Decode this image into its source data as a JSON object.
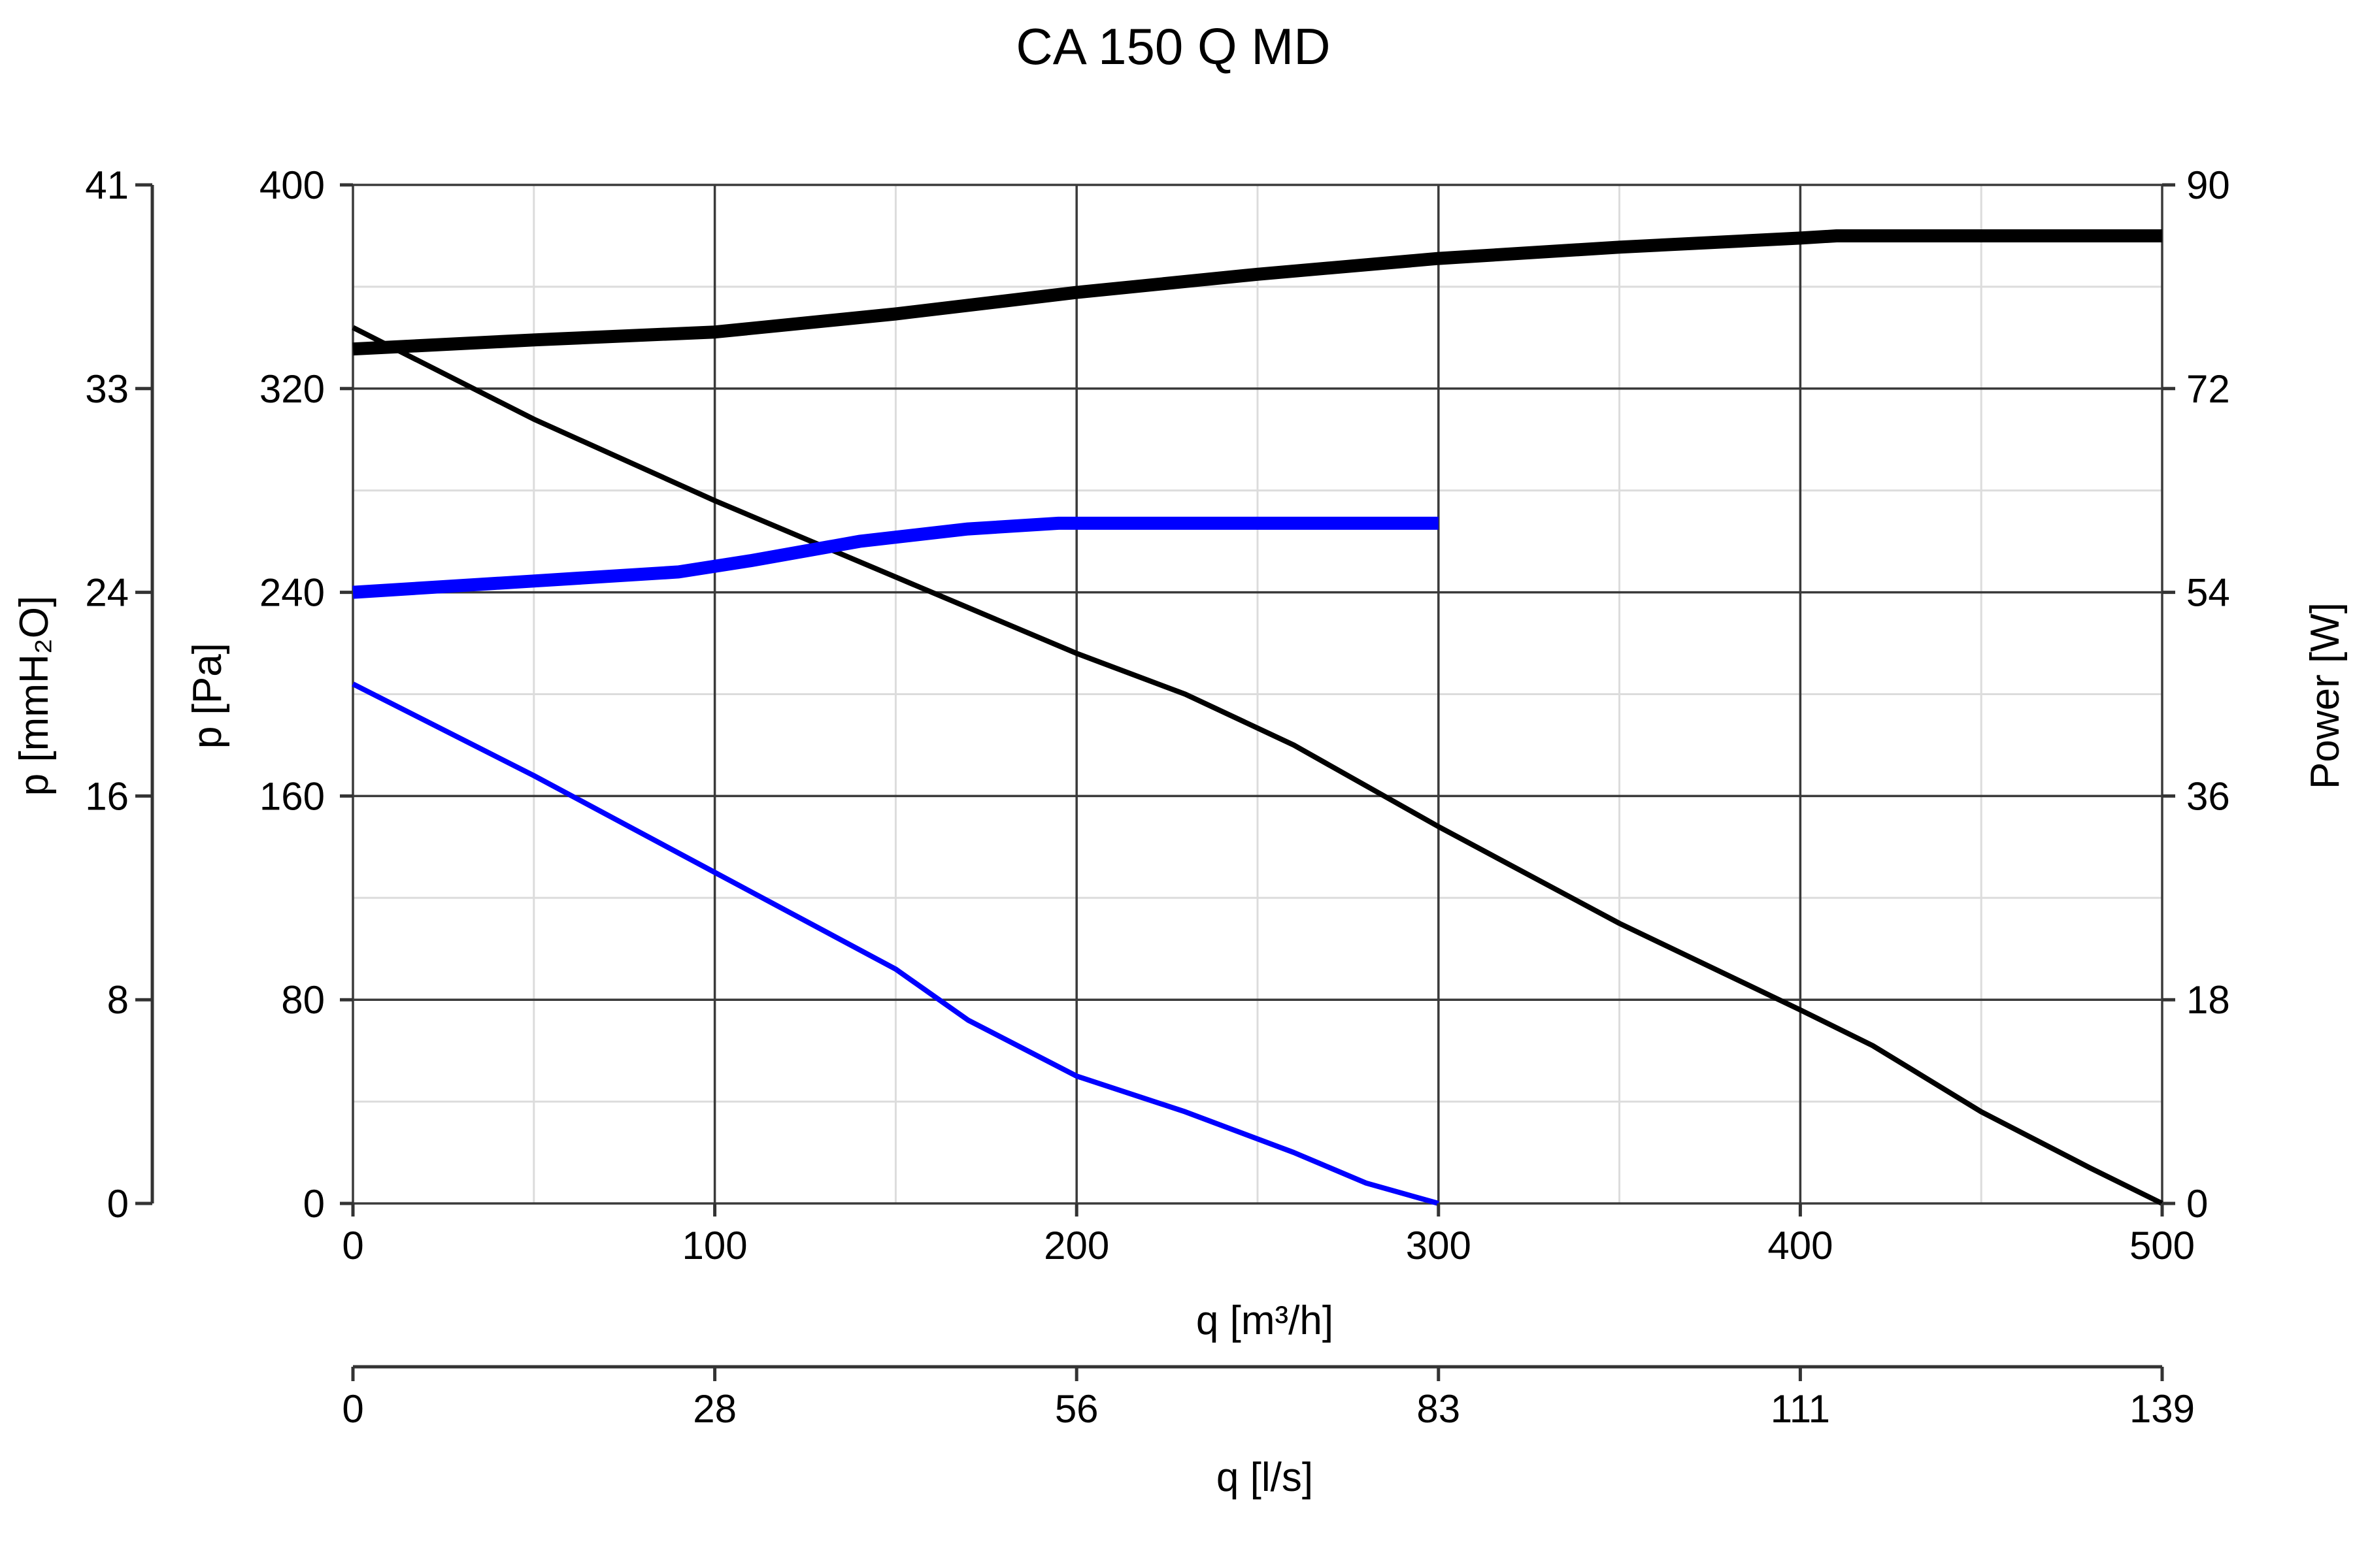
{
  "chart_data": {
    "type": "line",
    "title": "CA 150 Q MD",
    "xlabel": "q [m³/h]",
    "xlabel_secondary": "q [l/s]",
    "ylabel": "p [Pa]",
    "ylabel_secondary_left": "p [mmH₂O]",
    "ylabel_right": "Power [W]",
    "xlim": [
      0,
      500
    ],
    "ylim": [
      0,
      400
    ],
    "ylim_right": [
      0,
      90
    ],
    "x_ticks": [
      "0",
      "100",
      "200",
      "300",
      "400",
      "500"
    ],
    "x_ticks_secondary": [
      "0",
      "28",
      "56",
      "83",
      "111",
      "139"
    ],
    "y_ticks": [
      "0",
      "80",
      "160",
      "240",
      "320",
      "400"
    ],
    "y_ticks_secondary_left": [
      "0",
      "8",
      "16",
      "24",
      "33",
      "41"
    ],
    "y_ticks_right": [
      "0",
      "18",
      "36",
      "54",
      "72",
      "90"
    ],
    "grid": true,
    "series": [
      {
        "axis": "pressure",
        "color": "#000000",
        "style": "thin",
        "x": [
          0,
          50,
          100,
          150,
          200,
          230,
          260,
          300,
          350,
          400,
          420,
          450,
          480,
          500
        ],
        "y": [
          344,
          308,
          276,
          246,
          216,
          200,
          180,
          148,
          110,
          76,
          62,
          36,
          14,
          0
        ]
      },
      {
        "axis": "pressure",
        "color": "#0000ff",
        "style": "thin",
        "x": [
          0,
          50,
          100,
          150,
          170,
          200,
          230,
          260,
          280,
          300
        ],
        "y": [
          204,
          168,
          130,
          92,
          72,
          50,
          36,
          20,
          8,
          0
        ]
      },
      {
        "axis": "power",
        "color": "#000000",
        "style": "thick",
        "x": [
          0,
          50,
          100,
          150,
          200,
          250,
          300,
          350,
          400,
          410,
          500
        ],
        "y": [
          75.5,
          76.3,
          77.0,
          78.6,
          80.5,
          82.1,
          83.5,
          84.5,
          85.3,
          85.5,
          85.5
        ]
      },
      {
        "axis": "power",
        "color": "#0000ff",
        "style": "thick",
        "x": [
          0,
          50,
          90,
          110,
          140,
          170,
          195,
          300
        ],
        "y": [
          54.0,
          55.0,
          55.8,
          56.8,
          58.5,
          59.6,
          60.1,
          60.1
        ]
      }
    ]
  }
}
